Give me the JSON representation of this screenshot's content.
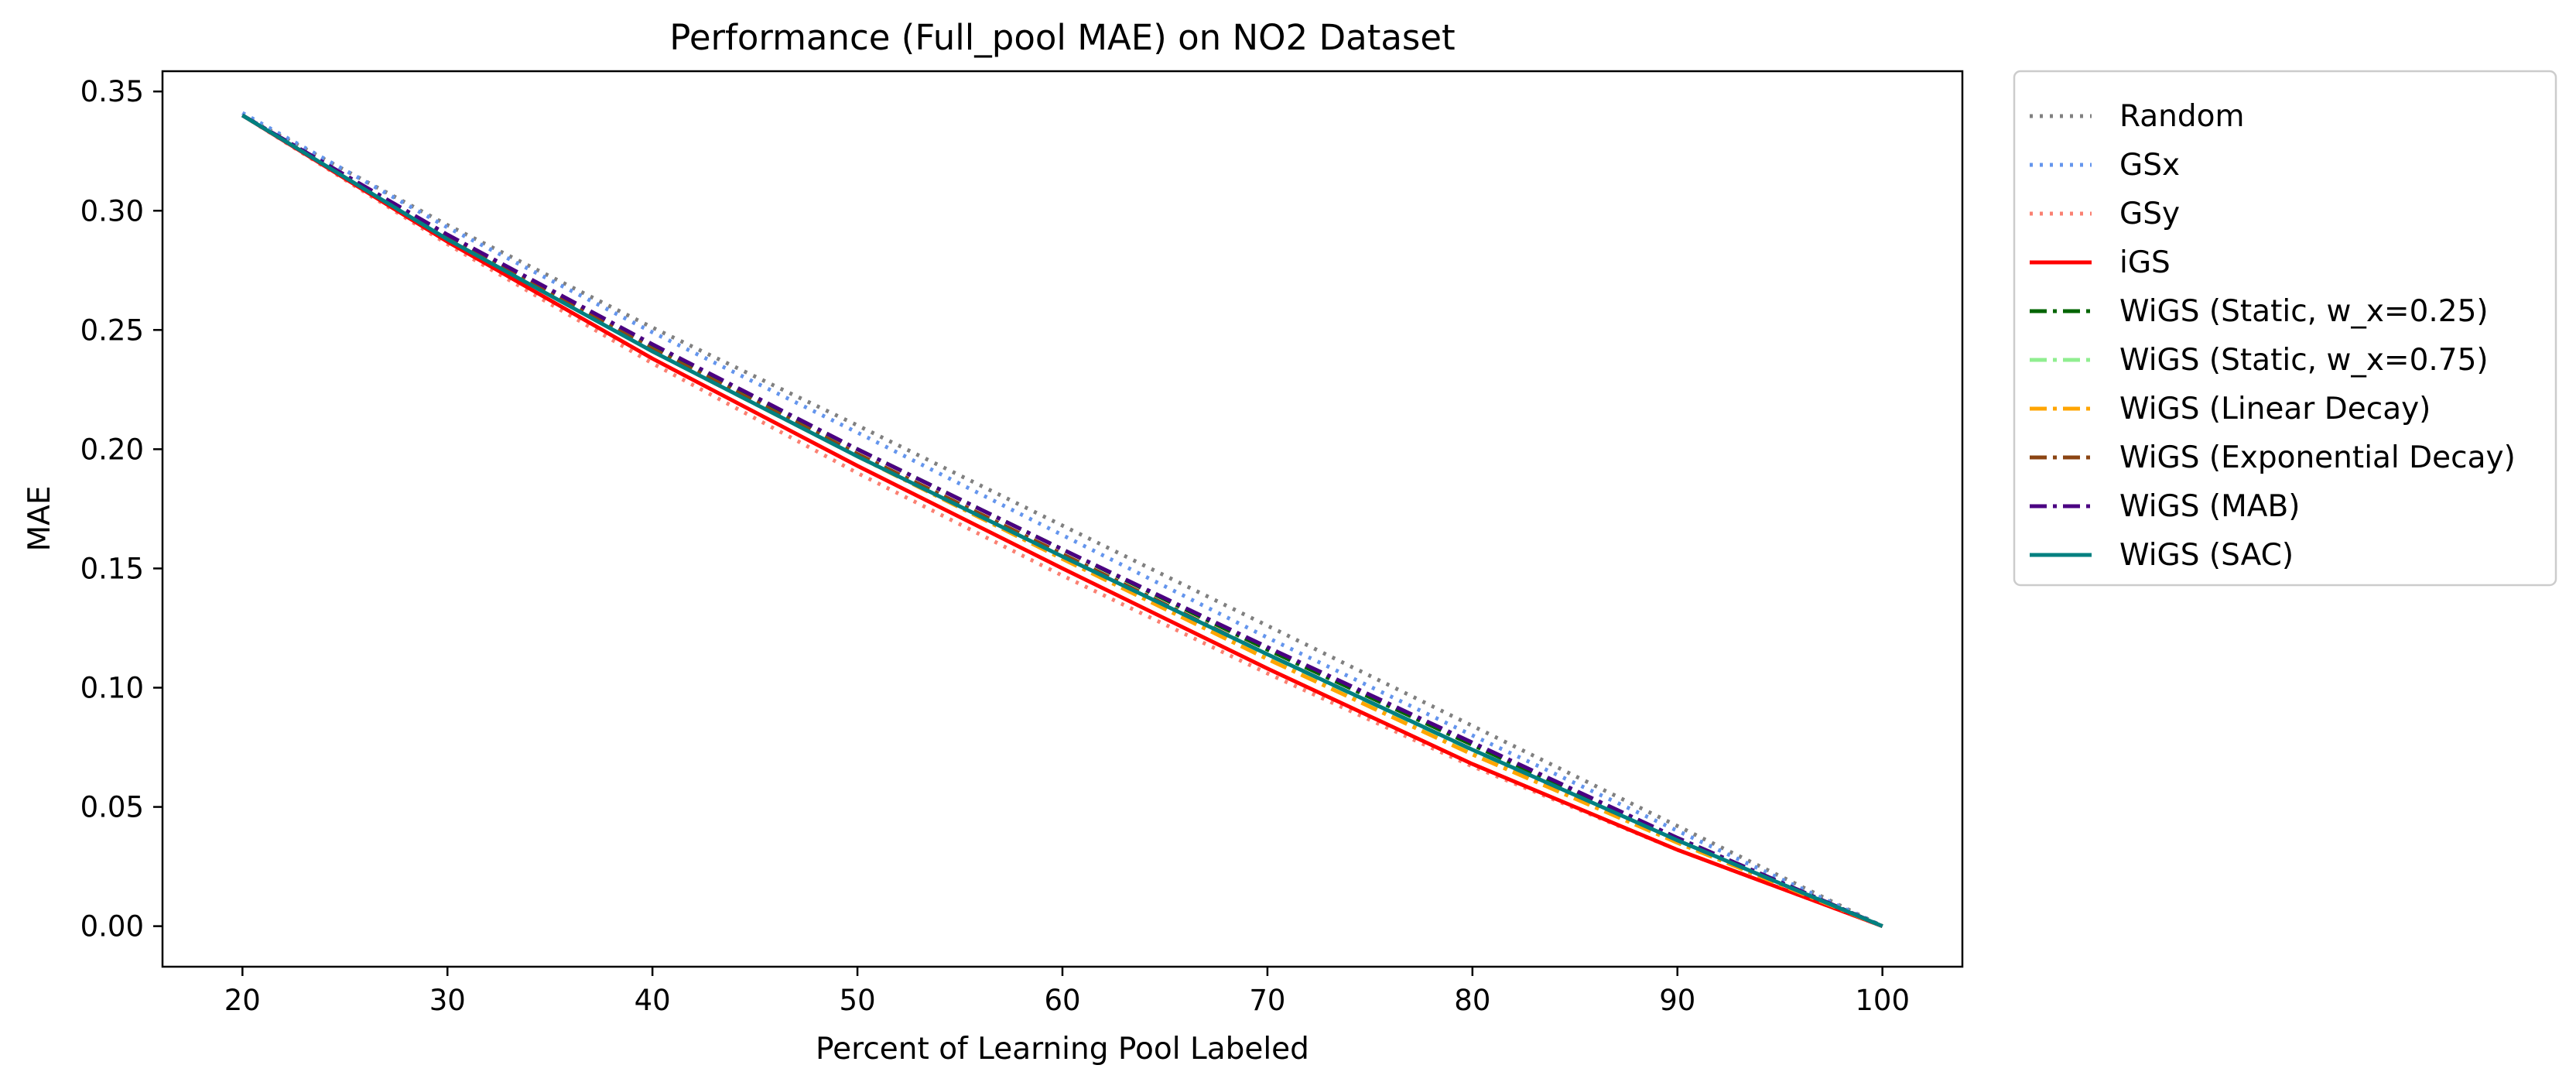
{
  "chart_data": {
    "type": "line",
    "title": "Performance (Full_pool MAE) on NO2 Dataset",
    "xlabel": "Percent of Learning Pool Labeled",
    "ylabel": "MAE",
    "xlim": [
      16.1,
      103.9
    ],
    "ylim": [
      -0.017,
      0.3585
    ],
    "xticks": [
      20,
      30,
      40,
      50,
      60,
      70,
      80,
      90,
      100
    ],
    "yticks": [
      0.0,
      0.05,
      0.1,
      0.15,
      0.2,
      0.25,
      0.3,
      0.35
    ],
    "yticklabels": [
      "0.00",
      "0.05",
      "0.10",
      "0.15",
      "0.20",
      "0.25",
      "0.30",
      "0.35"
    ],
    "grid": false,
    "legend_position": "outside-top-right",
    "series": [
      {
        "name": "Random",
        "color": "#808080",
        "style": "dotted",
        "x": [
          20,
          30,
          40,
          50,
          60,
          70,
          80,
          90,
          100
        ],
        "y": [
          0.34,
          0.294,
          0.251,
          0.21,
          0.168,
          0.126,
          0.084,
          0.042,
          0.0
        ]
      },
      {
        "name": "GSx",
        "color": "#6495ED",
        "style": "dotted",
        "x": [
          20,
          30,
          40,
          50,
          60,
          70,
          80,
          90,
          100
        ],
        "y": [
          0.341,
          0.293,
          0.249,
          0.207,
          0.164,
          0.121,
          0.08,
          0.04,
          0.0
        ]
      },
      {
        "name": "GSy",
        "color": "#FA8072",
        "style": "dotted",
        "x": [
          20,
          30,
          40,
          50,
          60,
          70,
          80,
          90,
          100
        ],
        "y": [
          0.34,
          0.286,
          0.236,
          0.19,
          0.147,
          0.106,
          0.067,
          0.032,
          0.0
        ]
      },
      {
        "name": "iGS",
        "color": "#FF0000",
        "style": "solid",
        "x": [
          20,
          30,
          40,
          50,
          60,
          70,
          80,
          90,
          100
        ],
        "y": [
          0.34,
          0.287,
          0.238,
          0.193,
          0.15,
          0.108,
          0.068,
          0.032,
          0.0
        ]
      },
      {
        "name": "WiGS (Static, w_x=0.25)",
        "color": "#006400",
        "style": "dashdot",
        "x": [
          20,
          30,
          40,
          50,
          60,
          70,
          80,
          90,
          100
        ],
        "y": [
          0.34,
          0.289,
          0.243,
          0.2,
          0.158,
          0.116,
          0.076,
          0.037,
          0.0
        ]
      },
      {
        "name": "WiGS (Static, w_x=0.75)",
        "color": "#90EE90",
        "style": "dashdot",
        "x": [
          20,
          30,
          40,
          50,
          60,
          70,
          80,
          90,
          100
        ],
        "y": [
          0.34,
          0.289,
          0.242,
          0.198,
          0.155,
          0.113,
          0.073,
          0.035,
          0.0
        ]
      },
      {
        "name": "WiGS (Linear Decay)",
        "color": "#FFA500",
        "style": "dashdot",
        "x": [
          20,
          30,
          40,
          50,
          60,
          70,
          80,
          90,
          100
        ],
        "y": [
          0.34,
          0.289,
          0.241,
          0.197,
          0.154,
          0.112,
          0.072,
          0.035,
          0.0
        ]
      },
      {
        "name": "WiGS (Exponential Decay)",
        "color": "#8B4513",
        "style": "dashdot",
        "x": [
          20,
          30,
          40,
          50,
          60,
          70,
          80,
          90,
          100
        ],
        "y": [
          0.34,
          0.289,
          0.242,
          0.198,
          0.156,
          0.114,
          0.074,
          0.036,
          0.0
        ]
      },
      {
        "name": "WiGS (MAB)",
        "color": "#4B0082",
        "style": "dashdot",
        "x": [
          20,
          30,
          40,
          50,
          60,
          70,
          80,
          90,
          100
        ],
        "y": [
          0.34,
          0.29,
          0.244,
          0.2,
          0.158,
          0.117,
          0.077,
          0.037,
          0.0
        ]
      },
      {
        "name": "WiGS (SAC)",
        "color": "#008080",
        "style": "solid",
        "x": [
          20,
          30,
          40,
          50,
          60,
          70,
          80,
          90,
          100
        ],
        "y": [
          0.34,
          0.288,
          0.241,
          0.197,
          0.155,
          0.114,
          0.074,
          0.036,
          0.0
        ]
      }
    ]
  }
}
